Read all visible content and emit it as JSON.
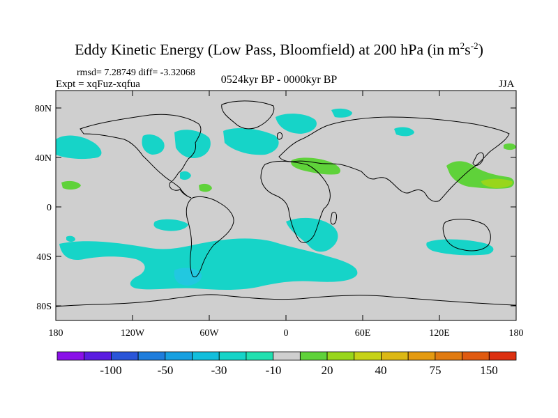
{
  "title": {
    "main": "Eddy Kinetic Energy (Low Pass, Bloomfield) at 200 hPa (in m",
    "sup1": "2",
    "mid": "s",
    "sup2": "-2",
    "close": ")"
  },
  "stats": "rmsd= 7.28749 diff= -3.32068",
  "experiment": "Expt = xqFuz-xqfua",
  "period": "0524kyr BP - 0000kyr BP",
  "season": "JJA",
  "lat_labels": [
    "80N",
    "40N",
    "0",
    "40S",
    "80S"
  ],
  "lon_labels": [
    "180",
    "120W",
    "60W",
    "0",
    "60E",
    "120E",
    "180"
  ],
  "colorbar": {
    "colors": [
      "#8a10e8",
      "#5a1de0",
      "#2a55d8",
      "#1f7ddc",
      "#18a0e0",
      "#12bedc",
      "#16d4c8",
      "#22e0b0",
      "#cfcfcf",
      "#5fd23a",
      "#98d61c",
      "#c6d218",
      "#dcb814",
      "#e49a10",
      "#e07a10",
      "#e05a10",
      "#dc3010"
    ],
    "labels": [
      "-100",
      "-50",
      "-30",
      "-10",
      "20",
      "40",
      "75",
      "150"
    ]
  }
}
